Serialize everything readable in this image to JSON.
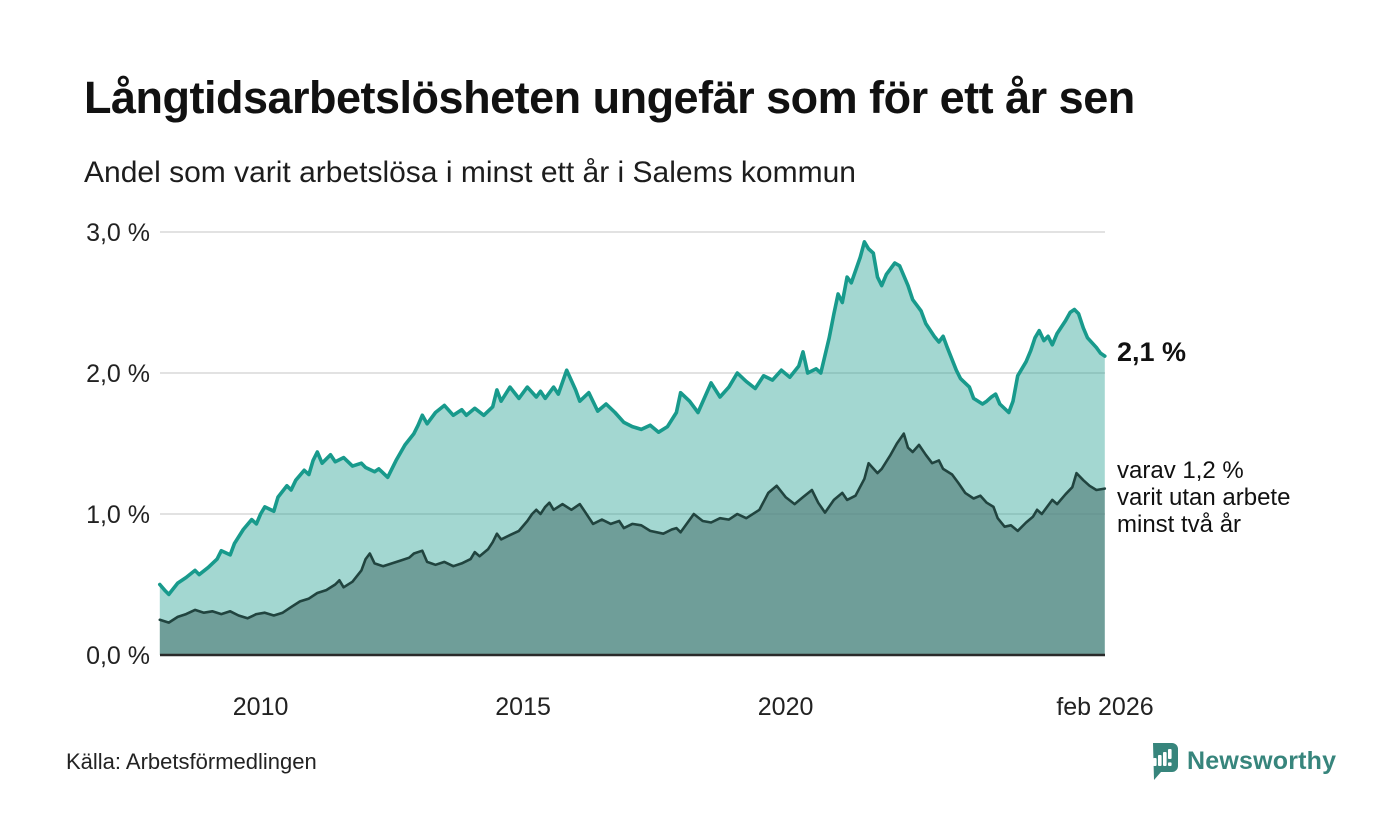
{
  "header": {
    "title": "Långtidsarbetslösheten ungefär som för ett år sen",
    "subtitle": "Andel som varit arbetslösa i minst ett år i Salems kommun"
  },
  "footer": {
    "source": "Källa: Arbetsförmedlingen",
    "brand": "Newsworthy"
  },
  "colors": {
    "accent_line": "#189a8c",
    "accent_fill": "rgba(26,154,140,0.40)",
    "dark_line": "#21443f",
    "dark_fill": "rgba(75,134,127,0.80)",
    "gridline": "#d9d9d9",
    "axis": "#2a2a2a",
    "brand_teal": "#37857c"
  },
  "chart_data": {
    "type": "area",
    "title": "Långtidsarbetslösheten ungefär som för ett år sen",
    "subtitle": "Andel som varit arbetslösa i minst ett år i Salems kommun",
    "grid": true,
    "x_axis": {
      "ticks": [
        "2010",
        "2015",
        "2020",
        "feb 2026"
      ],
      "tick_years": [
        2010,
        2015,
        2020,
        2026.083
      ],
      "range_years": [
        2008.083,
        2026.083
      ]
    },
    "y_axis": {
      "ticks": [
        "0,0 %",
        "1,0 %",
        "2,0 %",
        "3,0 %"
      ],
      "tick_values": [
        0,
        1,
        2,
        3
      ],
      "range": [
        0,
        3
      ]
    },
    "annotations": {
      "latest_label": "2,1 %",
      "secondary_lines": [
        "varav 1,2 %",
        "varit utan arbete",
        "minst två år"
      ]
    },
    "series": [
      {
        "name": "arbetslösa minst ett år",
        "latest_value_pct": 2.1,
        "points": [
          [
            2008.08,
            0.5
          ],
          [
            2008.17,
            0.46
          ],
          [
            2008.25,
            0.43
          ],
          [
            2008.42,
            0.51
          ],
          [
            2008.58,
            0.55
          ],
          [
            2008.75,
            0.6
          ],
          [
            2008.83,
            0.57
          ],
          [
            2009.0,
            0.62
          ],
          [
            2009.17,
            0.68
          ],
          [
            2009.25,
            0.74
          ],
          [
            2009.42,
            0.71
          ],
          [
            2009.5,
            0.79
          ],
          [
            2009.67,
            0.89
          ],
          [
            2009.83,
            0.96
          ],
          [
            2009.92,
            0.93
          ],
          [
            2010.0,
            1.0
          ],
          [
            2010.08,
            1.05
          ],
          [
            2010.25,
            1.02
          ],
          [
            2010.33,
            1.12
          ],
          [
            2010.5,
            1.2
          ],
          [
            2010.58,
            1.17
          ],
          [
            2010.67,
            1.24
          ],
          [
            2010.83,
            1.31
          ],
          [
            2010.92,
            1.28
          ],
          [
            2011.0,
            1.38
          ],
          [
            2011.08,
            1.44
          ],
          [
            2011.17,
            1.36
          ],
          [
            2011.33,
            1.42
          ],
          [
            2011.42,
            1.37
          ],
          [
            2011.58,
            1.4
          ],
          [
            2011.75,
            1.34
          ],
          [
            2011.92,
            1.36
          ],
          [
            2012.0,
            1.33
          ],
          [
            2012.17,
            1.3
          ],
          [
            2012.25,
            1.32
          ],
          [
            2012.42,
            1.26
          ],
          [
            2012.58,
            1.38
          ],
          [
            2012.75,
            1.49
          ],
          [
            2012.92,
            1.57
          ],
          [
            2013.0,
            1.63
          ],
          [
            2013.08,
            1.7
          ],
          [
            2013.17,
            1.64
          ],
          [
            2013.33,
            1.72
          ],
          [
            2013.5,
            1.77
          ],
          [
            2013.67,
            1.7
          ],
          [
            2013.83,
            1.74
          ],
          [
            2013.92,
            1.7
          ],
          [
            2014.08,
            1.75
          ],
          [
            2014.25,
            1.7
          ],
          [
            2014.42,
            1.76
          ],
          [
            2014.5,
            1.88
          ],
          [
            2014.58,
            1.8
          ],
          [
            2014.75,
            1.9
          ],
          [
            2014.92,
            1.82
          ],
          [
            2015.08,
            1.9
          ],
          [
            2015.25,
            1.83
          ],
          [
            2015.33,
            1.87
          ],
          [
            2015.42,
            1.82
          ],
          [
            2015.58,
            1.9
          ],
          [
            2015.67,
            1.85
          ],
          [
            2015.83,
            2.02
          ],
          [
            2016.0,
            1.88
          ],
          [
            2016.08,
            1.8
          ],
          [
            2016.25,
            1.86
          ],
          [
            2016.42,
            1.73
          ],
          [
            2016.58,
            1.78
          ],
          [
            2016.75,
            1.72
          ],
          [
            2016.92,
            1.65
          ],
          [
            2017.08,
            1.62
          ],
          [
            2017.25,
            1.6
          ],
          [
            2017.42,
            1.63
          ],
          [
            2017.58,
            1.58
          ],
          [
            2017.75,
            1.62
          ],
          [
            2017.92,
            1.72
          ],
          [
            2018.0,
            1.86
          ],
          [
            2018.17,
            1.8
          ],
          [
            2018.33,
            1.72
          ],
          [
            2018.58,
            1.93
          ],
          [
            2018.75,
            1.83
          ],
          [
            2018.92,
            1.9
          ],
          [
            2019.08,
            2.0
          ],
          [
            2019.25,
            1.94
          ],
          [
            2019.42,
            1.89
          ],
          [
            2019.58,
            1.98
          ],
          [
            2019.75,
            1.95
          ],
          [
            2019.92,
            2.02
          ],
          [
            2020.08,
            1.97
          ],
          [
            2020.25,
            2.05
          ],
          [
            2020.33,
            2.15
          ],
          [
            2020.42,
            2.0
          ],
          [
            2020.58,
            2.03
          ],
          [
            2020.67,
            2.0
          ],
          [
            2020.83,
            2.25
          ],
          [
            2020.92,
            2.42
          ],
          [
            2021.0,
            2.56
          ],
          [
            2021.08,
            2.5
          ],
          [
            2021.17,
            2.68
          ],
          [
            2021.25,
            2.64
          ],
          [
            2021.42,
            2.82
          ],
          [
            2021.5,
            2.93
          ],
          [
            2021.58,
            2.88
          ],
          [
            2021.67,
            2.85
          ],
          [
            2021.75,
            2.68
          ],
          [
            2021.83,
            2.62
          ],
          [
            2021.92,
            2.7
          ],
          [
            2022.08,
            2.78
          ],
          [
            2022.17,
            2.76
          ],
          [
            2022.33,
            2.62
          ],
          [
            2022.42,
            2.52
          ],
          [
            2022.5,
            2.48
          ],
          [
            2022.58,
            2.44
          ],
          [
            2022.67,
            2.35
          ],
          [
            2022.83,
            2.26
          ],
          [
            2022.92,
            2.22
          ],
          [
            2023.0,
            2.26
          ],
          [
            2023.08,
            2.18
          ],
          [
            2023.25,
            2.02
          ],
          [
            2023.33,
            1.96
          ],
          [
            2023.5,
            1.9
          ],
          [
            2023.58,
            1.82
          ],
          [
            2023.75,
            1.78
          ],
          [
            2023.83,
            1.8
          ],
          [
            2023.92,
            1.83
          ],
          [
            2024.0,
            1.85
          ],
          [
            2024.08,
            1.78
          ],
          [
            2024.25,
            1.72
          ],
          [
            2024.33,
            1.8
          ],
          [
            2024.42,
            1.98
          ],
          [
            2024.58,
            2.08
          ],
          [
            2024.67,
            2.16
          ],
          [
            2024.75,
            2.25
          ],
          [
            2024.83,
            2.3
          ],
          [
            2024.92,
            2.23
          ],
          [
            2025.0,
            2.26
          ],
          [
            2025.08,
            2.2
          ],
          [
            2025.17,
            2.28
          ],
          [
            2025.33,
            2.37
          ],
          [
            2025.42,
            2.43
          ],
          [
            2025.5,
            2.45
          ],
          [
            2025.58,
            2.42
          ],
          [
            2025.67,
            2.32
          ],
          [
            2025.75,
            2.25
          ],
          [
            2025.92,
            2.18
          ],
          [
            2026.0,
            2.14
          ],
          [
            2026.08,
            2.12
          ]
        ]
      },
      {
        "name": "varav utan arbete minst två år",
        "latest_value_pct": 1.2,
        "points": [
          [
            2008.08,
            0.25
          ],
          [
            2008.25,
            0.23
          ],
          [
            2008.42,
            0.27
          ],
          [
            2008.58,
            0.29
          ],
          [
            2008.75,
            0.32
          ],
          [
            2008.92,
            0.3
          ],
          [
            2009.08,
            0.31
          ],
          [
            2009.25,
            0.29
          ],
          [
            2009.42,
            0.31
          ],
          [
            2009.58,
            0.28
          ],
          [
            2009.75,
            0.26
          ],
          [
            2009.92,
            0.29
          ],
          [
            2010.08,
            0.3
          ],
          [
            2010.25,
            0.28
          ],
          [
            2010.42,
            0.3
          ],
          [
            2010.58,
            0.34
          ],
          [
            2010.75,
            0.38
          ],
          [
            2010.92,
            0.4
          ],
          [
            2011.08,
            0.44
          ],
          [
            2011.25,
            0.46
          ],
          [
            2011.42,
            0.5
          ],
          [
            2011.5,
            0.53
          ],
          [
            2011.58,
            0.48
          ],
          [
            2011.75,
            0.52
          ],
          [
            2011.92,
            0.6
          ],
          [
            2012.0,
            0.68
          ],
          [
            2012.08,
            0.72
          ],
          [
            2012.17,
            0.65
          ],
          [
            2012.33,
            0.63
          ],
          [
            2012.5,
            0.65
          ],
          [
            2012.67,
            0.67
          ],
          [
            2012.83,
            0.69
          ],
          [
            2012.92,
            0.72
          ],
          [
            2013.08,
            0.74
          ],
          [
            2013.17,
            0.66
          ],
          [
            2013.33,
            0.64
          ],
          [
            2013.5,
            0.66
          ],
          [
            2013.67,
            0.63
          ],
          [
            2013.83,
            0.65
          ],
          [
            2014.0,
            0.68
          ],
          [
            2014.08,
            0.73
          ],
          [
            2014.17,
            0.7
          ],
          [
            2014.33,
            0.75
          ],
          [
            2014.42,
            0.8
          ],
          [
            2014.5,
            0.86
          ],
          [
            2014.58,
            0.82
          ],
          [
            2014.75,
            0.85
          ],
          [
            2014.92,
            0.88
          ],
          [
            2015.08,
            0.95
          ],
          [
            2015.17,
            1.0
          ],
          [
            2015.25,
            1.03
          ],
          [
            2015.33,
            1.0
          ],
          [
            2015.42,
            1.05
          ],
          [
            2015.5,
            1.08
          ],
          [
            2015.58,
            1.03
          ],
          [
            2015.75,
            1.07
          ],
          [
            2015.92,
            1.03
          ],
          [
            2016.08,
            1.07
          ],
          [
            2016.17,
            1.02
          ],
          [
            2016.33,
            0.93
          ],
          [
            2016.5,
            0.96
          ],
          [
            2016.67,
            0.93
          ],
          [
            2016.83,
            0.95
          ],
          [
            2016.92,
            0.9
          ],
          [
            2017.08,
            0.93
          ],
          [
            2017.25,
            0.92
          ],
          [
            2017.42,
            0.88
          ],
          [
            2017.67,
            0.86
          ],
          [
            2017.83,
            0.89
          ],
          [
            2017.92,
            0.9
          ],
          [
            2018.0,
            0.87
          ],
          [
            2018.25,
            1.0
          ],
          [
            2018.42,
            0.95
          ],
          [
            2018.58,
            0.94
          ],
          [
            2018.75,
            0.97
          ],
          [
            2018.92,
            0.96
          ],
          [
            2019.08,
            1.0
          ],
          [
            2019.25,
            0.97
          ],
          [
            2019.5,
            1.03
          ],
          [
            2019.67,
            1.15
          ],
          [
            2019.83,
            1.2
          ],
          [
            2020.0,
            1.12
          ],
          [
            2020.17,
            1.07
          ],
          [
            2020.33,
            1.12
          ],
          [
            2020.5,
            1.17
          ],
          [
            2020.62,
            1.08
          ],
          [
            2020.75,
            1.01
          ],
          [
            2020.92,
            1.1
          ],
          [
            2021.08,
            1.15
          ],
          [
            2021.17,
            1.1
          ],
          [
            2021.33,
            1.13
          ],
          [
            2021.5,
            1.25
          ],
          [
            2021.58,
            1.36
          ],
          [
            2021.75,
            1.29
          ],
          [
            2021.83,
            1.32
          ],
          [
            2022.0,
            1.42
          ],
          [
            2022.12,
            1.5
          ],
          [
            2022.25,
            1.57
          ],
          [
            2022.33,
            1.47
          ],
          [
            2022.42,
            1.44
          ],
          [
            2022.54,
            1.49
          ],
          [
            2022.67,
            1.42
          ],
          [
            2022.79,
            1.36
          ],
          [
            2022.92,
            1.38
          ],
          [
            2023.0,
            1.32
          ],
          [
            2023.17,
            1.28
          ],
          [
            2023.29,
            1.22
          ],
          [
            2023.42,
            1.15
          ],
          [
            2023.58,
            1.11
          ],
          [
            2023.71,
            1.13
          ],
          [
            2023.83,
            1.08
          ],
          [
            2023.96,
            1.05
          ],
          [
            2024.04,
            0.97
          ],
          [
            2024.17,
            0.91
          ],
          [
            2024.29,
            0.92
          ],
          [
            2024.42,
            0.88
          ],
          [
            2024.58,
            0.94
          ],
          [
            2024.71,
            0.98
          ],
          [
            2024.79,
            1.03
          ],
          [
            2024.88,
            1.0
          ],
          [
            2025.0,
            1.06
          ],
          [
            2025.08,
            1.1
          ],
          [
            2025.17,
            1.07
          ],
          [
            2025.33,
            1.14
          ],
          [
            2025.46,
            1.19
          ],
          [
            2025.54,
            1.29
          ],
          [
            2025.67,
            1.24
          ],
          [
            2025.79,
            1.2
          ],
          [
            2025.92,
            1.17
          ],
          [
            2026.08,
            1.18
          ]
        ]
      }
    ]
  }
}
